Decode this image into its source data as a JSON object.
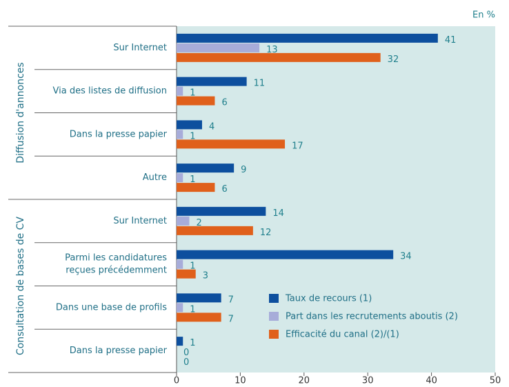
{
  "chart_data": {
    "type": "bar",
    "orientation": "horizontal",
    "unit": "En %",
    "group_labels": [
      "Diffusion d'annonces",
      "Consultation de bases de CV"
    ],
    "categories": [
      "Sur Internet",
      "Via des listes de diffusion",
      "Dans la presse papier",
      "Autre",
      "Sur Internet",
      [
        "Parmi les candidatures",
        "reçues précédemment"
      ],
      "Dans une base de profils",
      "Dans la presse papier"
    ],
    "series": [
      {
        "name": "Taux de recours (1)",
        "color": "#0d4f9e",
        "values": [
          41,
          11,
          4,
          9,
          14,
          34,
          7,
          1
        ]
      },
      {
        "name": "Part dans les recrutements aboutis (2)",
        "color": "#a7acd9",
        "values": [
          13,
          1,
          1,
          1,
          2,
          1,
          1,
          0
        ]
      },
      {
        "name": "Efficacité du canal (2)/(1)",
        "color": "#e0601b",
        "values": [
          32,
          6,
          17,
          6,
          12,
          3,
          7,
          0
        ]
      }
    ],
    "xlim": [
      0,
      50
    ],
    "xticks": [
      0,
      10,
      20,
      30,
      40,
      50
    ],
    "legend": "lower right",
    "background": "#d5e9e9"
  }
}
